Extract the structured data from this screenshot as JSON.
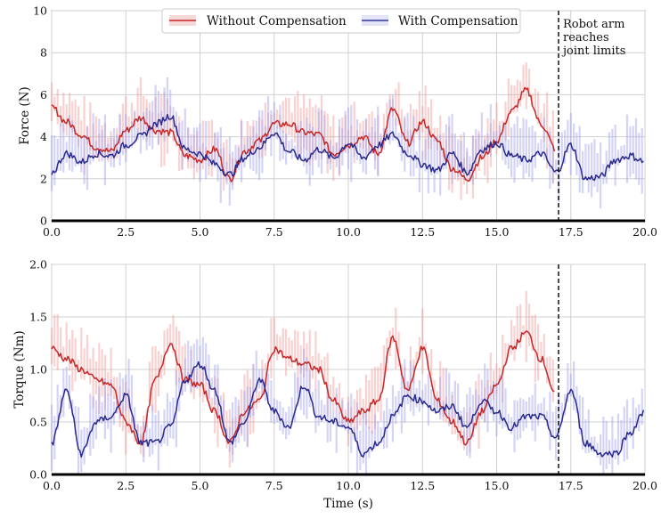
{
  "chart_data": [
    {
      "type": "line",
      "ylabel": "Force (N)",
      "xlabel": "",
      "xlim": [
        0,
        20
      ],
      "ylim": [
        0,
        10
      ],
      "xticks": [
        "0.0",
        "2.5",
        "5.0",
        "7.5",
        "10.0",
        "12.5",
        "15.0",
        "17.5",
        "20.0"
      ],
      "yticks": [
        "0",
        "2",
        "4",
        "6",
        "8",
        "10"
      ],
      "grid": true,
      "legend_placement": "top-center",
      "annotation": {
        "text_lines": [
          "Robot arm",
          "reaches",
          "joint limits"
        ],
        "x": 17.1
      },
      "x": [
        0,
        0.5,
        1,
        1.5,
        2,
        2.5,
        3,
        3.5,
        4,
        4.5,
        5,
        5.5,
        6,
        6.5,
        7,
        7.5,
        8,
        8.5,
        9,
        9.5,
        10,
        10.5,
        11,
        11.5,
        12,
        12.5,
        13,
        13.5,
        14,
        14.5,
        15,
        15.5,
        16,
        16.5,
        17,
        17.5,
        18,
        18.5,
        19,
        19.5,
        20
      ],
      "series": [
        {
          "name": "Without Compensation",
          "color": "#c62828",
          "values": [
            5.4,
            4.7,
            4.1,
            3.5,
            3.3,
            4.3,
            4.9,
            4.3,
            4.2,
            3.1,
            2.9,
            3.4,
            2.0,
            3.3,
            3.8,
            4.6,
            4.6,
            4.2,
            4.1,
            3.2,
            3.6,
            4.0,
            3.2,
            5.3,
            3.7,
            4.7,
            3.8,
            2.5,
            2.0,
            3.0,
            3.8,
            5.2,
            6.2,
            4.6,
            3.4,
            null,
            null,
            null,
            null,
            null,
            null
          ]
        },
        {
          "name": "With Compensation",
          "color": "#2a2a8c",
          "values": [
            2.3,
            3.2,
            2.8,
            3.2,
            3.1,
            3.6,
            4.0,
            4.6,
            5.0,
            3.4,
            3.2,
            2.7,
            2.2,
            3.0,
            3.5,
            4.2,
            3.3,
            2.9,
            3.4,
            3.0,
            3.7,
            3.0,
            3.6,
            4.1,
            3.2,
            2.7,
            2.4,
            3.2,
            2.3,
            3.4,
            3.7,
            3.1,
            2.9,
            3.2,
            2.3,
            3.6,
            2.0,
            2.1,
            2.9,
            3.1,
            2.8
          ]
        }
      ]
    },
    {
      "type": "line",
      "ylabel": "Torque (Nm)",
      "xlabel": "Time (s)",
      "xlim": [
        0,
        20
      ],
      "ylim": [
        0,
        2
      ],
      "xticks": [
        "0.0",
        "2.5",
        "5.0",
        "7.5",
        "10.0",
        "12.5",
        "15.0",
        "17.5",
        "20.0"
      ],
      "yticks": [
        "0.0",
        "0.5",
        "1.0",
        "1.5",
        "2.0"
      ],
      "grid": true,
      "annotation": {
        "x": 17.1
      },
      "x": [
        0,
        0.5,
        1,
        1.5,
        2,
        2.5,
        3,
        3.5,
        4,
        4.5,
        5,
        5.5,
        6,
        6.5,
        7,
        7.5,
        8,
        8.5,
        9,
        9.5,
        10,
        10.5,
        11,
        11.5,
        12,
        12.5,
        13,
        13.5,
        14,
        14.5,
        15,
        15.5,
        16,
        16.5,
        17,
        17.5,
        18,
        18.5,
        19,
        19.5,
        20
      ],
      "series": [
        {
          "name": "Without Compensation",
          "color": "#c62828",
          "values": [
            1.2,
            1.1,
            1.0,
            0.9,
            0.85,
            0.5,
            0.3,
            0.9,
            1.25,
            0.9,
            0.85,
            0.6,
            0.3,
            0.6,
            0.7,
            1.2,
            1.1,
            1.05,
            1.0,
            0.7,
            0.5,
            0.6,
            0.7,
            1.3,
            0.8,
            1.2,
            0.7,
            0.5,
            0.3,
            0.6,
            0.85,
            1.2,
            1.35,
            1.1,
            0.75,
            null,
            null,
            null,
            null,
            null,
            null
          ]
        },
        {
          "name": "With Compensation",
          "color": "#2a2a8c",
          "values": [
            0.3,
            0.8,
            0.2,
            0.5,
            0.55,
            0.75,
            0.3,
            0.3,
            0.45,
            0.9,
            1.05,
            0.8,
            0.3,
            0.5,
            0.9,
            0.6,
            0.45,
            0.85,
            0.55,
            0.5,
            0.45,
            0.2,
            0.3,
            0.55,
            0.75,
            0.7,
            0.6,
            0.65,
            0.45,
            0.7,
            0.6,
            0.45,
            0.55,
            0.55,
            0.35,
            0.8,
            0.3,
            0.2,
            0.2,
            0.4,
            0.6
          ]
        }
      ]
    }
  ]
}
